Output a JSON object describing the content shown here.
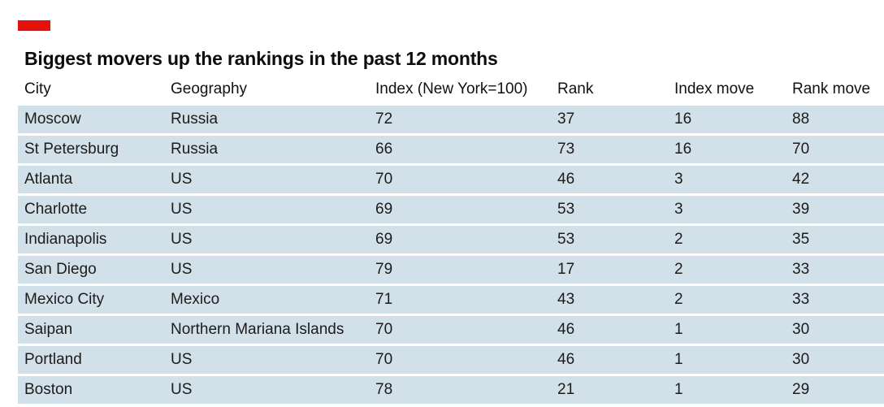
{
  "colors": {
    "accent": "#e3120b",
    "row_background": "#d2e0ea",
    "text": "#1a1a1a"
  },
  "title": "Biggest movers up the rankings in the past 12 months",
  "table": {
    "columns": [
      "City",
      "Geography",
      "Index (New York=100)",
      "Rank",
      "Index move",
      "Rank move"
    ],
    "rows": [
      [
        "Moscow",
        "Russia",
        "72",
        "37",
        "16",
        "88"
      ],
      [
        "St Petersburg",
        "Russia",
        "66",
        "73",
        "16",
        "70"
      ],
      [
        "Atlanta",
        "US",
        "70",
        "46",
        "3",
        "42"
      ],
      [
        "Charlotte",
        "US",
        "69",
        "53",
        "3",
        "39"
      ],
      [
        "Indianapolis",
        "US",
        "69",
        "53",
        "2",
        "35"
      ],
      [
        "San Diego",
        "US",
        "79",
        "17",
        "2",
        "33"
      ],
      [
        "Mexico City",
        "Mexico",
        "71",
        "43",
        "2",
        "33"
      ],
      [
        "Saipan",
        "Northern Mariana Islands",
        "70",
        "46",
        "1",
        "30"
      ],
      [
        "Portland",
        "US",
        "70",
        "46",
        "1",
        "30"
      ],
      [
        "Boston",
        "US",
        "78",
        "21",
        "1",
        "29"
      ]
    ]
  }
}
